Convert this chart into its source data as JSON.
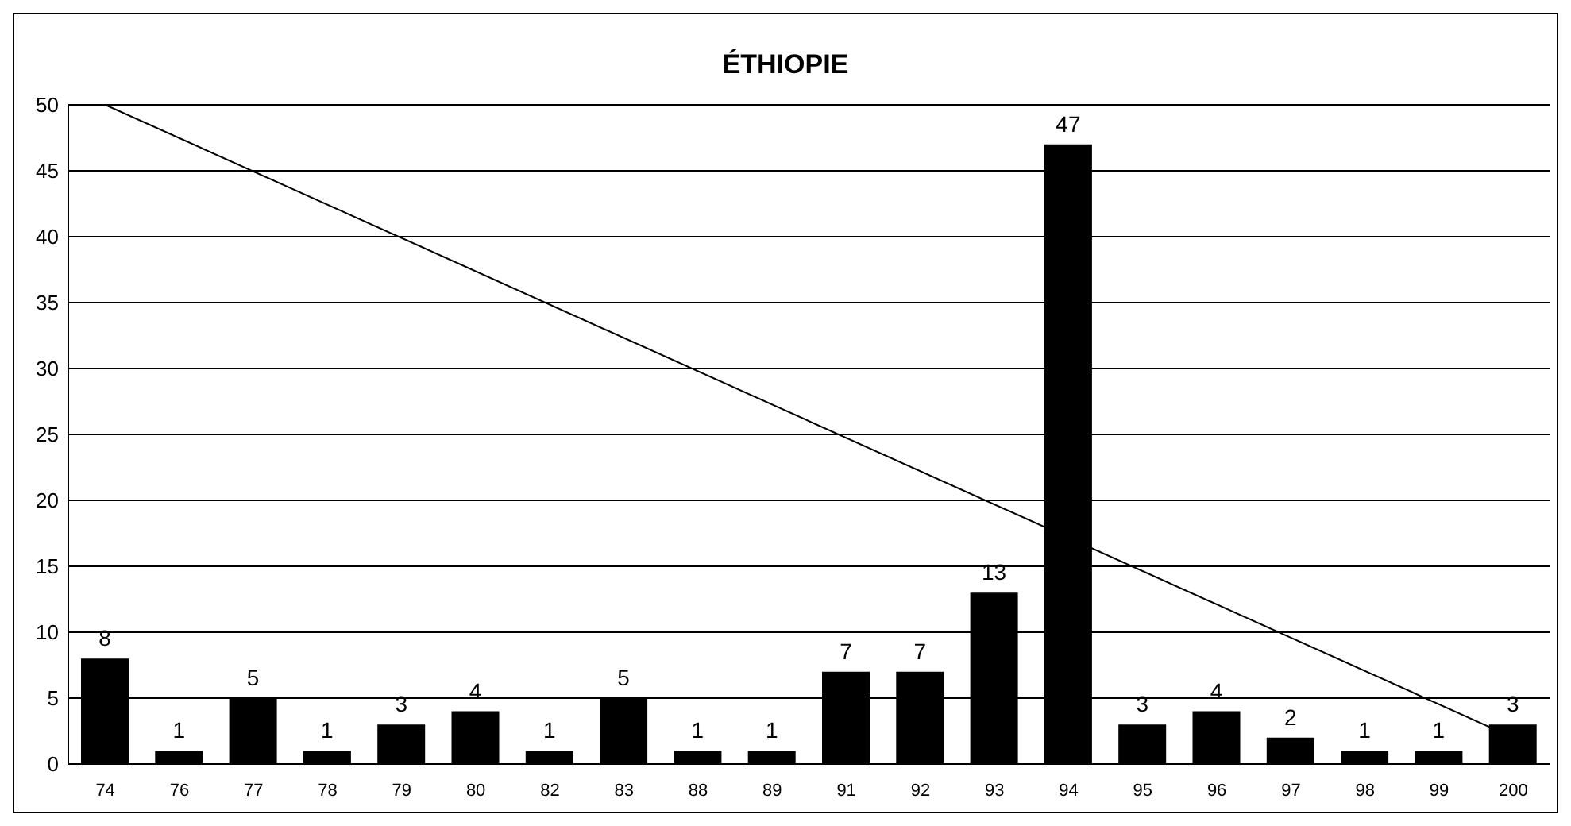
{
  "chart_data": {
    "type": "bar",
    "title": "ÉTHIOPIE",
    "categories": [
      "74",
      "76",
      "77",
      "78",
      "79",
      "80",
      "82",
      "83",
      "88",
      "89",
      "91",
      "92",
      "93",
      "94",
      "95",
      "96",
      "97",
      "98",
      "99",
      "200"
    ],
    "series": [
      {
        "color": "#000000",
        "values": [
          8,
          1,
          5,
          1,
          3,
          4,
          1,
          5,
          1,
          1,
          7,
          7,
          13,
          47,
          3,
          4,
          2,
          1,
          1,
          3
        ],
        "value_labels": [
          "8",
          "1",
          "5",
          "1",
          "3",
          "4",
          "1",
          "5",
          "1",
          "1",
          "7",
          "7",
          "13",
          "47",
          "3",
          "4",
          "2",
          "1",
          "1",
          "3"
        ]
      },
      {
        "type": "line",
        "color": "#000000",
        "x": [
          "74",
          "200"
        ],
        "values": [
          50,
          2
        ],
        "marker": "none"
      }
    ],
    "ylim": [
      0,
      50
    ],
    "yticks": [
      0,
      5,
      10,
      15,
      20,
      25,
      30,
      35,
      40,
      45,
      50
    ],
    "grid": "y"
  }
}
